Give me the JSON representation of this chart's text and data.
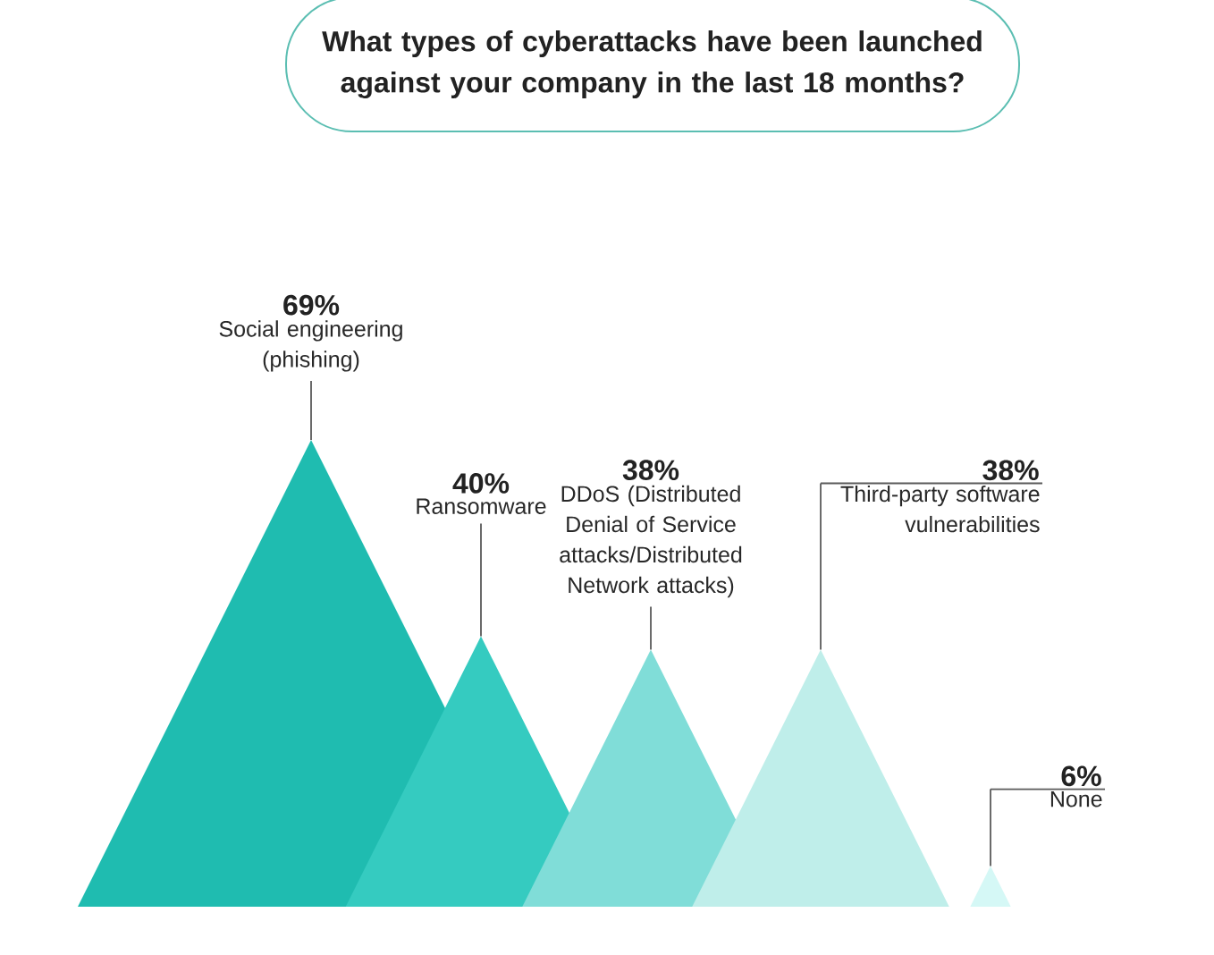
{
  "chart_data": {
    "type": "other",
    "title": "What types of cyberattacks have been launched against your company in the last 18 months?",
    "categories": [
      "Social engineering (phishing)",
      "Ransomware",
      "DDoS (Distributed Denial of Service attacks/Distributed Network attacks)",
      "Third-party software vulnerabilities",
      "None"
    ],
    "values": [
      69,
      40,
      38,
      38,
      6
    ],
    "value_labels": [
      "69%",
      "40%",
      "38%",
      "38%",
      "6%"
    ],
    "colors": [
      "#1fbcb0",
      "#35cbc0",
      "#80ddd8",
      "#bfeeea",
      "#d5f8f6"
    ]
  }
}
